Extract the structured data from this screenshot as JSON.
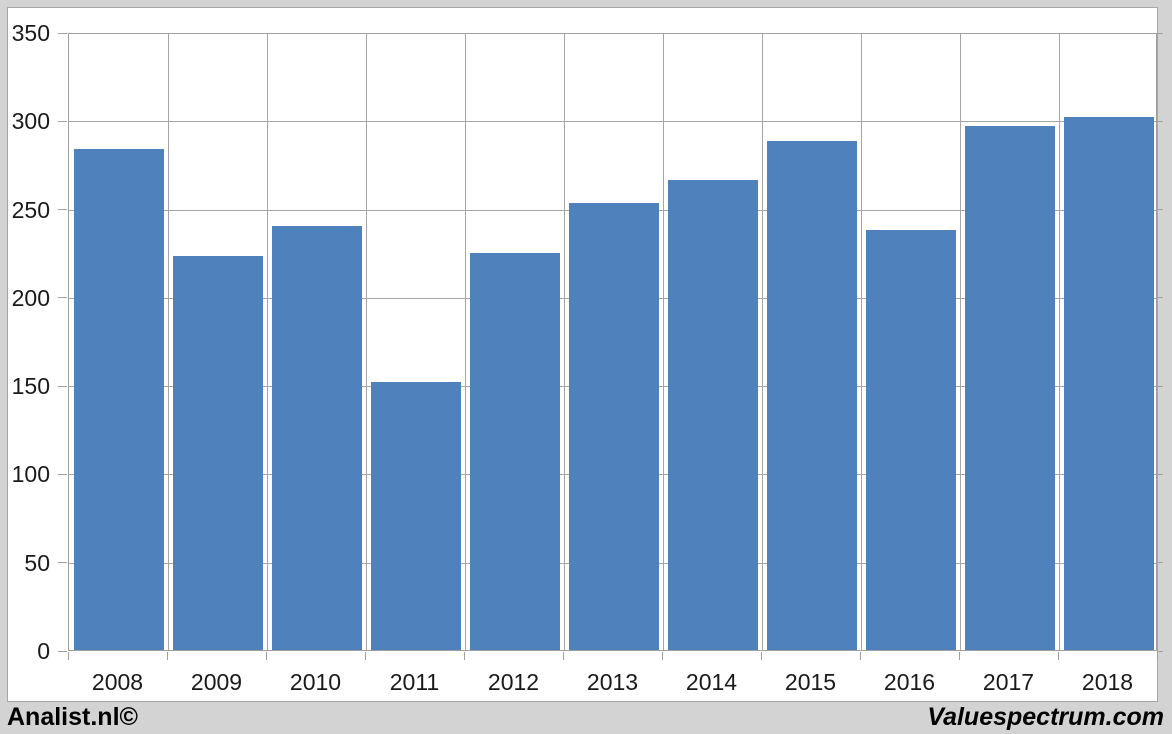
{
  "chart_data": {
    "type": "bar",
    "categories": [
      "2008",
      "2009",
      "2010",
      "2011",
      "2012",
      "2013",
      "2014",
      "2015",
      "2016",
      "2017",
      "2018"
    ],
    "values": [
      284,
      223,
      240,
      152,
      225,
      253,
      266,
      288,
      238,
      297,
      302
    ],
    "xlabel": "",
    "ylabel": "",
    "ylim": [
      0,
      350
    ],
    "y_ticks": [
      0,
      50,
      100,
      150,
      200,
      250,
      300,
      350
    ],
    "grid": true,
    "legend": "none"
  },
  "footer": {
    "left_watermark": "Analist.nl©",
    "right_watermark": "Valuespectrum.com"
  },
  "colors": {
    "bar": "#4f81bd",
    "gridline": "#a6a6a6",
    "axis": "#9f9f9f",
    "frame_background": "#d3d3d3",
    "plot_background": "#ffffff",
    "text": "#1a1a1a",
    "watermark_text": "#000000"
  }
}
